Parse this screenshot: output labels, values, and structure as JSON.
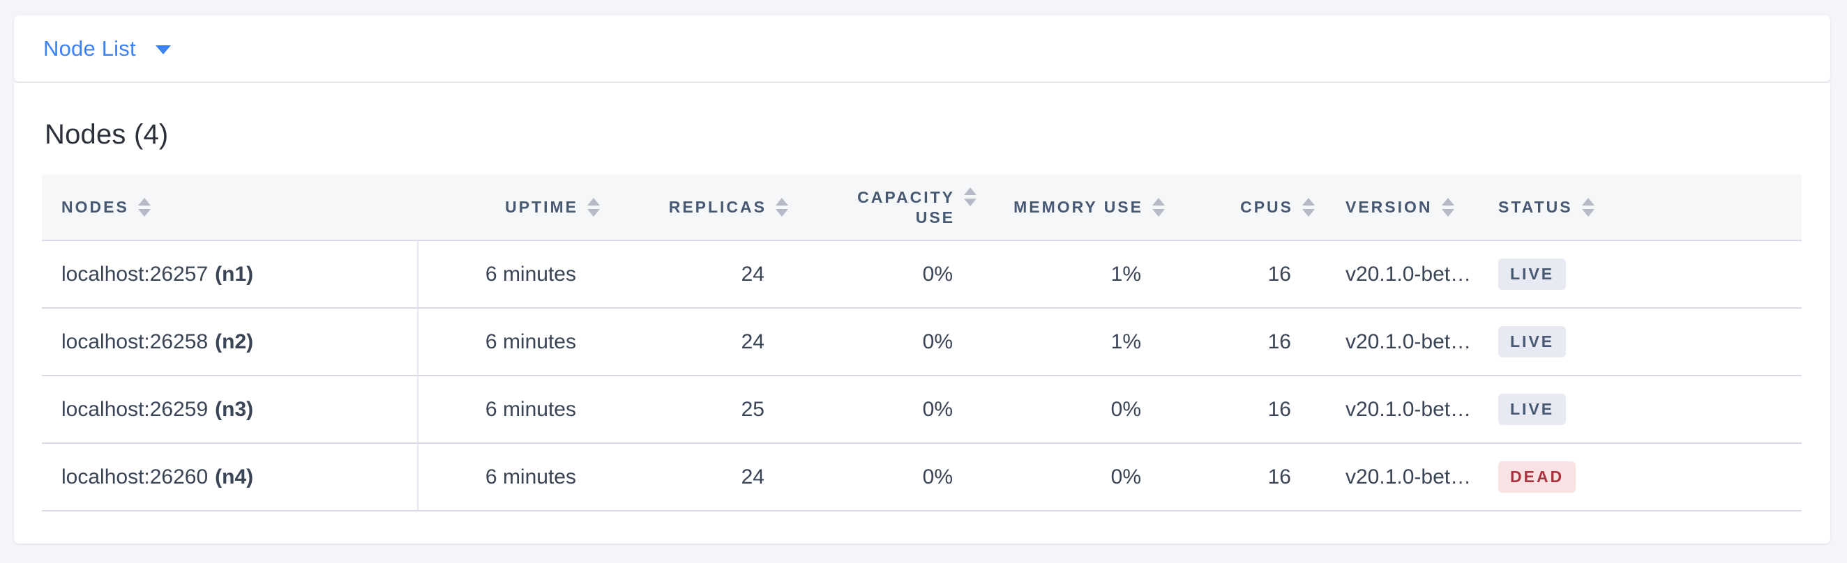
{
  "page_selector": {
    "label": "Node List",
    "caret_icon": "caret-down-icon"
  },
  "summary": {
    "title": "Nodes (4)"
  },
  "colors": {
    "accent_blue": "#3b82f6",
    "header_text": "#475872",
    "cell_text": "#394455",
    "live_badge_bg": "#e7eaf3",
    "live_badge_text": "#475872",
    "dead_badge_bg": "#f8e2e3",
    "dead_badge_text": "#a93440",
    "header_row_bg": "#f6f7f9",
    "page_bg": "#f4f5f9"
  },
  "table": {
    "columns": [
      {
        "key": "nodes",
        "label": "NODES",
        "align": "left",
        "sortable": true
      },
      {
        "key": "uptime",
        "label": "UPTIME",
        "align": "right",
        "sortable": true
      },
      {
        "key": "replicas",
        "label": "REPLICAS",
        "align": "right",
        "sortable": true
      },
      {
        "key": "capacity",
        "label": "CAPACITY USE",
        "align": "right",
        "sortable": true
      },
      {
        "key": "memory",
        "label": "MEMORY USE",
        "align": "right",
        "sortable": true
      },
      {
        "key": "cpus",
        "label": "CPUS",
        "align": "right",
        "sortable": true
      },
      {
        "key": "version",
        "label": "VERSION",
        "align": "left",
        "sortable": true
      },
      {
        "key": "status",
        "label": "STATUS",
        "align": "left",
        "sortable": true
      }
    ],
    "rows": [
      {
        "address": "localhost:26257",
        "node_id": "(n1)",
        "uptime": "6 minutes",
        "replicas": "24",
        "capacity": "0%",
        "memory": "1%",
        "cpus": "16",
        "version": "v20.1.0-bet…",
        "status": "LIVE"
      },
      {
        "address": "localhost:26258",
        "node_id": "(n2)",
        "uptime": "6 minutes",
        "replicas": "24",
        "capacity": "0%",
        "memory": "1%",
        "cpus": "16",
        "version": "v20.1.0-bet…",
        "status": "LIVE"
      },
      {
        "address": "localhost:26259",
        "node_id": "(n3)",
        "uptime": "6 minutes",
        "replicas": "25",
        "capacity": "0%",
        "memory": "0%",
        "cpus": "16",
        "version": "v20.1.0-bet…",
        "status": "LIVE"
      },
      {
        "address": "localhost:26260",
        "node_id": "(n4)",
        "uptime": "6 minutes",
        "replicas": "24",
        "capacity": "0%",
        "memory": "0%",
        "cpus": "16",
        "version": "v20.1.0-bet…",
        "status": "DEAD"
      }
    ]
  }
}
